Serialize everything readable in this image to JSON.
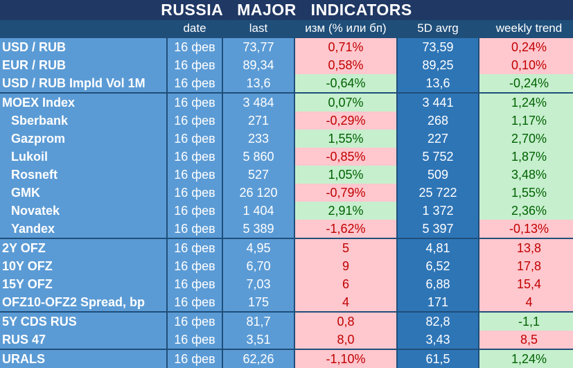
{
  "title": "RUSSIA   MAJOR   INDICATORS",
  "headers": {
    "name": "",
    "date": "date",
    "last": "last",
    "chg": "изм (% или бп)",
    "avg": "5D avrg",
    "trend": "weekly trend"
  },
  "rows": [
    {
      "name": "USD / RUB",
      "date": "16 фев",
      "last": "73,77",
      "chg": "0,71%",
      "avg": "73,59",
      "trend": "0,24%"
    },
    {
      "name": "EUR / RUB",
      "date": "16 фев",
      "last": "89,34",
      "chg": "0,58%",
      "avg": "89,25",
      "trend": "0,10%"
    },
    {
      "name": "USD / RUB Impld Vol 1M",
      "date": "16 фев",
      "last": "13,6",
      "chg": "-0,64%",
      "avg": "13,6",
      "trend": "-0,24%"
    },
    {
      "name": "MOEX Index",
      "date": "16 фев",
      "last": "3 484",
      "chg": "0,07%",
      "avg": "3 441",
      "trend": "1,24%"
    },
    {
      "name": "Sberbank",
      "date": "16 фев",
      "last": "271",
      "chg": "-0,29%",
      "avg": "268",
      "trend": "1,17%"
    },
    {
      "name": "Gazprom",
      "date": "16 фев",
      "last": "233",
      "chg": "1,55%",
      "avg": "227",
      "trend": "2,70%"
    },
    {
      "name": "Lukoil",
      "date": "16 фев",
      "last": "5 860",
      "chg": "-0,85%",
      "avg": "5 752",
      "trend": "1,87%"
    },
    {
      "name": "Rosneft",
      "date": "16 фев",
      "last": "527",
      "chg": "1,05%",
      "avg": "509",
      "trend": "3,48%"
    },
    {
      "name": "GMK",
      "date": "16 фев",
      "last": "26 120",
      "chg": "-0,79%",
      "avg": "25 722",
      "trend": "1,55%"
    },
    {
      "name": "Novatek",
      "date": "16 фев",
      "last": "1 404",
      "chg": "2,91%",
      "avg": "1 372",
      "trend": "2,36%"
    },
    {
      "name": "Yandex",
      "date": "16 фев",
      "last": "5 389",
      "chg": "-1,62%",
      "avg": "5 397",
      "trend": "-0,13%"
    },
    {
      "name": "2Y OFZ",
      "date": "16 фев",
      "last": "4,95",
      "chg": "5",
      "avg": "4,81",
      "trend": "13,8"
    },
    {
      "name": "10Y OFZ",
      "date": "16 фев",
      "last": "6,70",
      "chg": "9",
      "avg": "6,52",
      "trend": "17,8"
    },
    {
      "name": "15Y OFZ",
      "date": "16 фев",
      "last": "7,03",
      "chg": "6",
      "avg": "6,88",
      "trend": "15,4"
    },
    {
      "name": "OFZ10-OFZ2 Spread, bp",
      "date": "16 фев",
      "last": "175",
      "chg": "4",
      "avg": "171",
      "trend": "4"
    },
    {
      "name": "5Y CDS RUS",
      "date": "16 фев",
      "last": "81,7",
      "chg": "0,8",
      "avg": "82,8",
      "trend": "-1,1"
    },
    {
      "name": "RUS 47",
      "date": "16 фев",
      "last": "3,51",
      "chg": "8,0",
      "avg": "3,43",
      "trend": "8,5"
    },
    {
      "name": "URALS",
      "date": "16 фев",
      "last": "62,26",
      "chg": "-1,10%",
      "avg": "61,5",
      "trend": "1,24%"
    }
  ],
  "colors": {
    "chg": [
      "pink",
      "pink",
      "green",
      "green",
      "pink",
      "green",
      "pink",
      "green",
      "pink",
      "green",
      "pink",
      "pink",
      "pink",
      "pink",
      "pink",
      "pink",
      "pink",
      "pink"
    ],
    "trend": [
      "pink",
      "pink",
      "green",
      "green",
      "green",
      "green",
      "green",
      "green",
      "green",
      "green",
      "pink",
      "pink",
      "pink",
      "pink",
      "pink",
      "green",
      "pink",
      "green"
    ],
    "text_chg": [
      "neg",
      "neg",
      "pos",
      "pos",
      "neg",
      "pos",
      "neg",
      "pos",
      "neg",
      "pos",
      "neg",
      "neg",
      "neg",
      "neg",
      "neg",
      "neg",
      "neg",
      "neg"
    ],
    "text_trend": [
      "neg",
      "neg",
      "pos",
      "pos",
      "pos",
      "pos",
      "pos",
      "pos",
      "pos",
      "pos",
      "neg",
      "neg",
      "neg",
      "neg",
      "neg",
      "pos",
      "neg",
      "pos"
    ],
    "pink": "#ffc7ce",
    "green": "#c6efce"
  }
}
